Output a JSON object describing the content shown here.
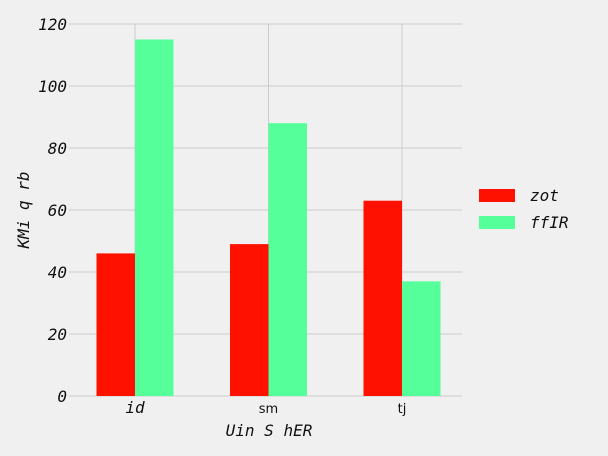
{
  "chart_data": {
    "type": "bar",
    "title": "",
    "xlabel": "Uin S hER",
    "ylabel": "KMi q  rb",
    "categories": [
      "id",
      "sm",
      "tj"
    ],
    "category_italic": [
      true,
      false,
      false
    ],
    "series": [
      {
        "name": "zot",
        "values": [
          46,
          49,
          63
        ],
        "color": "#ff1100"
      },
      {
        "name": "ffIR",
        "values": [
          115,
          88,
          37
        ],
        "color": "#55ff99"
      }
    ],
    "ylim": [
      0,
      120
    ],
    "yticks": [
      0,
      20,
      40,
      60,
      80,
      100,
      120
    ],
    "grid": true,
    "legend": "right"
  }
}
